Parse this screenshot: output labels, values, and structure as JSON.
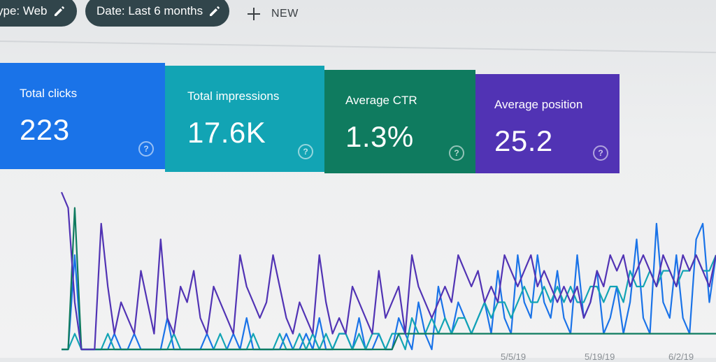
{
  "filters": {
    "type_chip": "ype: Web",
    "date_chip": "Date: Last 6 months",
    "new_label": "NEW"
  },
  "metrics": [
    {
      "label": "Total clicks",
      "value": "223",
      "color": "#1a73e8"
    },
    {
      "label": "Total impressions",
      "value": "17.6K",
      "color": "#12a4b4"
    },
    {
      "label": "Average CTR",
      "value": "1.3%",
      "color": "#0f7b5f"
    },
    {
      "label": "Average position",
      "value": "25.2",
      "color": "#5133b4"
    }
  ],
  "icons": {
    "edit": "pencil-icon",
    "add": "plus-icon",
    "help": "question-circle-icon"
  },
  "chart_data": {
    "type": "line",
    "x_tick_labels": [
      "5/5/19",
      "5/19/19",
      "6/2/19"
    ],
    "series": [
      {
        "color": "#1a73e8",
        "values": [
          0,
          0,
          6,
          0,
          0,
          0,
          0,
          0,
          1,
          0,
          0,
          1,
          0,
          0,
          0,
          0,
          2,
          0,
          0,
          0,
          0,
          0,
          1,
          0,
          0,
          0,
          1,
          0,
          2,
          0,
          0,
          0,
          0,
          0,
          1,
          0,
          0,
          1,
          0,
          2,
          0,
          0,
          1,
          1,
          0,
          2,
          0,
          0,
          1,
          0,
          0,
          2,
          1,
          0,
          3,
          1,
          0,
          4,
          2,
          1,
          3,
          2,
          1,
          2,
          3,
          1,
          5,
          2,
          1,
          6,
          3,
          2,
          6,
          3,
          2,
          5,
          2,
          1,
          6,
          2,
          3,
          5,
          1,
          2,
          4,
          1,
          3,
          7,
          2,
          1,
          8,
          3,
          2,
          6,
          2,
          1,
          7,
          8,
          3,
          6
        ]
      },
      {
        "color": "#12a4b4",
        "values": [
          0,
          0,
          1,
          0,
          0,
          0,
          0,
          1,
          0,
          0,
          0,
          0,
          0,
          0,
          0,
          0,
          0,
          1,
          0,
          0,
          0,
          0,
          0,
          0,
          1,
          0,
          0,
          0,
          0,
          1,
          0,
          0,
          0,
          1,
          0,
          0,
          1,
          0,
          1,
          0,
          1,
          0,
          1,
          1,
          0,
          1,
          0,
          1,
          1,
          0,
          1,
          1,
          0,
          2,
          1,
          1,
          2,
          1,
          2,
          1,
          2,
          2,
          1,
          2,
          3,
          2,
          3,
          3,
          2,
          3,
          4,
          3,
          3,
          4,
          3,
          4,
          3,
          4,
          3,
          3,
          4,
          4,
          3,
          4,
          4,
          3,
          5,
          4,
          4,
          5,
          4,
          5,
          5,
          4,
          5,
          5,
          6,
          5,
          5,
          6
        ]
      },
      {
        "color": "#0f7b5f",
        "values": [
          0,
          0,
          9,
          0,
          0,
          0,
          0,
          0,
          0,
          0,
          0,
          0,
          0,
          0,
          0,
          0,
          0,
          0,
          0,
          0,
          0,
          0,
          0,
          0,
          0,
          0,
          0,
          0,
          0,
          0,
          0,
          0,
          0,
          0,
          0,
          0,
          0,
          0,
          0,
          0,
          0,
          0,
          0,
          0,
          0,
          0,
          0,
          0,
          0,
          0,
          0,
          1,
          1,
          1,
          1,
          1,
          1,
          1,
          1,
          1,
          1,
          1,
          1,
          1,
          1,
          1,
          1,
          1,
          1,
          1,
          1,
          1,
          1,
          1,
          1,
          1,
          1,
          1,
          1,
          1,
          1,
          1,
          1,
          1,
          1,
          1,
          1,
          1,
          1,
          1,
          1,
          1,
          1,
          1,
          1,
          1,
          1,
          1,
          1,
          1
        ]
      },
      {
        "color": "#5133b4",
        "values": [
          10,
          9,
          3,
          0,
          0,
          0,
          8,
          4,
          1,
          3,
          2,
          1,
          5,
          3,
          1,
          7,
          2,
          1,
          4,
          3,
          5,
          2,
          1,
          4,
          3,
          2,
          1,
          6,
          4,
          3,
          2,
          3,
          6,
          4,
          2,
          1,
          3,
          2,
          1,
          6,
          3,
          1,
          2,
          1,
          4,
          3,
          2,
          1,
          5,
          2,
          3,
          4,
          1,
          6,
          4,
          3,
          2,
          3,
          4,
          3,
          6,
          5,
          4,
          5,
          3,
          4,
          3,
          6,
          5,
          4,
          5,
          6,
          4,
          5,
          4,
          3,
          4,
          3,
          4,
          2,
          3,
          5,
          4,
          6,
          5,
          6,
          4,
          5,
          6,
          5,
          4,
          6,
          5,
          4,
          6,
          5,
          6,
          5,
          4,
          6
        ]
      }
    ]
  }
}
